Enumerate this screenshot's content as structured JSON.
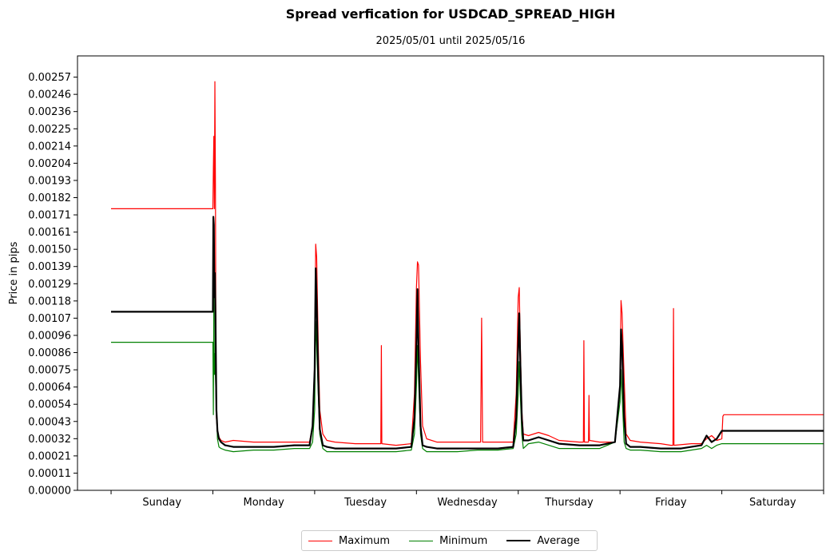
{
  "title": "Spread verfication for USDCAD_SPREAD_HIGH",
  "subtitle": "2025/05/01 until 2025/05/16",
  "chart_data": {
    "type": "line",
    "title": "Spread verfication for USDCAD_SPREAD_HIGH",
    "subtitle": "2025/05/01 until 2025/05/16",
    "xlabel": "",
    "ylabel": "Price in pips",
    "ylim": [
      0,
      0.0027
    ],
    "xlim": [
      -0.33,
      7.0
    ],
    "x_unit": "days from start of Sunday",
    "grid": false,
    "legend_position": "bottom-center",
    "categories": [
      "Sunday",
      "Monday",
      "Tuesday",
      "Wednesday",
      "Thursday",
      "Friday",
      "Saturday"
    ],
    "yticks": [
      "0.00000",
      "0.00011",
      "0.00021",
      "0.00032",
      "0.00043",
      "0.00054",
      "0.00064",
      "0.00075",
      "0.00086",
      "0.00096",
      "0.00107",
      "0.00118",
      "0.00129",
      "0.00139",
      "0.00150",
      "0.00161",
      "0.00171",
      "0.00182",
      "0.00193",
      "0.00204",
      "0.00214",
      "0.00225",
      "0.00236",
      "0.00246",
      "0.00257"
    ],
    "ytick_values": [
      0,
      0.000107,
      0.000214,
      0.000321,
      0.000428,
      0.000535,
      0.000642,
      0.000749,
      0.000856,
      0.000963,
      0.00107,
      0.001177,
      0.001284,
      0.001391,
      0.001498,
      0.001605,
      0.001712,
      0.001819,
      0.001926,
      0.002033,
      0.00214,
      0.002247,
      0.002354,
      0.002461,
      0.002568
    ],
    "series": [
      {
        "name": "Maximum",
        "color": "#ff0000",
        "width": 1.2,
        "x": [
          0.0,
          1.0,
          1.005,
          1.01,
          1.015,
          1.02,
          1.025,
          1.03,
          1.035,
          1.045,
          1.06,
          1.08,
          1.12,
          1.2,
          1.4,
          1.6,
          1.8,
          1.95,
          1.98,
          2.0,
          2.01,
          2.02,
          2.035,
          2.05,
          2.08,
          2.12,
          2.2,
          2.4,
          2.6,
          2.65,
          2.655,
          2.66,
          2.8,
          2.95,
          2.98,
          3.0,
          3.01,
          3.02,
          3.04,
          3.06,
          3.1,
          3.2,
          3.4,
          3.6,
          3.63,
          3.64,
          3.65,
          3.8,
          3.95,
          3.98,
          4.0,
          4.01,
          4.02,
          4.035,
          4.05,
          4.1,
          4.2,
          4.3,
          4.4,
          4.6,
          4.64,
          4.645,
          4.65,
          4.69,
          4.695,
          4.7,
          4.8,
          4.95,
          5.0,
          5.01,
          5.02,
          5.04,
          5.06,
          5.1,
          5.2,
          5.4,
          5.5,
          5.52,
          5.525,
          5.53,
          5.7,
          5.8,
          5.85,
          5.9,
          5.95,
          6.0,
          6.01,
          6.02,
          7.0
        ],
        "y": [
          0.00175,
          0.00175,
          0.002,
          0.0022,
          0.00175,
          0.00254,
          0.0019,
          0.0008,
          0.00045,
          0.00037,
          0.00033,
          0.00031,
          0.0003,
          0.00031,
          0.0003,
          0.0003,
          0.0003,
          0.0003,
          0.0004,
          0.0008,
          0.00153,
          0.00145,
          0.0009,
          0.0005,
          0.00035,
          0.00031,
          0.0003,
          0.00029,
          0.00029,
          0.00029,
          0.0009,
          0.00029,
          0.00028,
          0.00029,
          0.0006,
          0.00126,
          0.00142,
          0.0014,
          0.0008,
          0.0004,
          0.00032,
          0.0003,
          0.0003,
          0.0003,
          0.0003,
          0.00107,
          0.0003,
          0.0003,
          0.0003,
          0.0006,
          0.0012,
          0.00126,
          0.0009,
          0.0005,
          0.00035,
          0.00034,
          0.00036,
          0.00034,
          0.00031,
          0.0003,
          0.0003,
          0.00093,
          0.0003,
          0.0003,
          0.00059,
          0.00031,
          0.0003,
          0.0003,
          0.00065,
          0.00118,
          0.0011,
          0.0007,
          0.00035,
          0.00031,
          0.0003,
          0.00029,
          0.00028,
          0.00028,
          0.00113,
          0.00028,
          0.00029,
          0.00029,
          0.00032,
          0.00034,
          0.00031,
          0.00032,
          0.00046,
          0.00047,
          0.00047
        ]
      },
      {
        "name": "Minimum",
        "color": "#008000",
        "width": 1.2,
        "x": [
          0.0,
          1.0,
          1.005,
          1.01,
          1.015,
          1.02,
          1.03,
          1.045,
          1.06,
          1.08,
          1.12,
          1.2,
          1.4,
          1.6,
          1.8,
          1.95,
          1.98,
          2.0,
          2.01,
          2.02,
          2.035,
          2.05,
          2.08,
          2.12,
          2.2,
          2.4,
          2.6,
          2.8,
          2.95,
          2.98,
          3.0,
          3.01,
          3.02,
          3.04,
          3.06,
          3.1,
          3.2,
          3.4,
          3.6,
          3.8,
          3.95,
          3.98,
          4.0,
          4.01,
          4.02,
          4.035,
          4.05,
          4.1,
          4.2,
          4.3,
          4.4,
          4.6,
          4.8,
          4.95,
          5.0,
          5.01,
          5.02,
          5.04,
          5.06,
          5.1,
          5.2,
          5.4,
          5.6,
          5.8,
          5.85,
          5.9,
          5.95,
          6.0,
          6.01,
          7.0
        ],
        "y": [
          0.00092,
          0.00092,
          0.00047,
          0.0012,
          0.00072,
          0.00085,
          0.0006,
          0.00032,
          0.00027,
          0.00026,
          0.00025,
          0.00024,
          0.00025,
          0.00025,
          0.00026,
          0.00026,
          0.0003,
          0.0005,
          0.00105,
          0.0009,
          0.0006,
          0.00035,
          0.00026,
          0.00024,
          0.00024,
          0.00024,
          0.00024,
          0.00024,
          0.00025,
          0.00035,
          0.00065,
          0.0009,
          0.0007,
          0.00035,
          0.00026,
          0.00024,
          0.00024,
          0.00024,
          0.00025,
          0.00025,
          0.00026,
          0.00035,
          0.0006,
          0.0008,
          0.0006,
          0.00035,
          0.00026,
          0.00029,
          0.0003,
          0.00028,
          0.00026,
          0.00026,
          0.00026,
          0.0003,
          0.00055,
          0.00075,
          0.0006,
          0.0003,
          0.00026,
          0.00025,
          0.00025,
          0.00024,
          0.00024,
          0.00026,
          0.00028,
          0.00026,
          0.00028,
          0.00029,
          0.00029,
          0.00029
        ]
      },
      {
        "name": "Average",
        "color": "#000000",
        "width": 2.2,
        "x": [
          0.0,
          1.0,
          1.005,
          1.01,
          1.015,
          1.02,
          1.025,
          1.035,
          1.045,
          1.06,
          1.08,
          1.12,
          1.2,
          1.4,
          1.6,
          1.8,
          1.95,
          1.98,
          2.0,
          2.01,
          2.02,
          2.035,
          2.05,
          2.08,
          2.12,
          2.2,
          2.4,
          2.6,
          2.8,
          2.95,
          2.98,
          3.0,
          3.01,
          3.02,
          3.04,
          3.06,
          3.1,
          3.2,
          3.4,
          3.6,
          3.8,
          3.95,
          3.98,
          4.0,
          4.01,
          4.02,
          4.035,
          4.05,
          4.1,
          4.2,
          4.3,
          4.4,
          4.6,
          4.8,
          4.95,
          5.0,
          5.01,
          5.02,
          5.04,
          5.06,
          5.1,
          5.2,
          5.4,
          5.6,
          5.8,
          5.85,
          5.9,
          5.95,
          6.0,
          6.01,
          7.0
        ],
        "y": [
          0.00111,
          0.00111,
          0.0017,
          0.00165,
          0.0012,
          0.00135,
          0.0011,
          0.0005,
          0.00037,
          0.00032,
          0.0003,
          0.00028,
          0.00027,
          0.00027,
          0.00027,
          0.00028,
          0.00028,
          0.0004,
          0.00075,
          0.00138,
          0.00118,
          0.0007,
          0.00038,
          0.00028,
          0.00027,
          0.00026,
          0.00026,
          0.00026,
          0.00026,
          0.00027,
          0.00045,
          0.0009,
          0.00125,
          0.0009,
          0.0004,
          0.00028,
          0.00027,
          0.00026,
          0.00026,
          0.00026,
          0.00026,
          0.00027,
          0.00045,
          0.0009,
          0.0011,
          0.0008,
          0.00045,
          0.00031,
          0.00031,
          0.00033,
          0.00031,
          0.00029,
          0.00028,
          0.00028,
          0.0003,
          0.00065,
          0.001,
          0.0009,
          0.00045,
          0.00029,
          0.00027,
          0.00027,
          0.00026,
          0.00026,
          0.00028,
          0.00034,
          0.0003,
          0.00032,
          0.00037,
          0.00037,
          0.00037
        ]
      }
    ]
  }
}
